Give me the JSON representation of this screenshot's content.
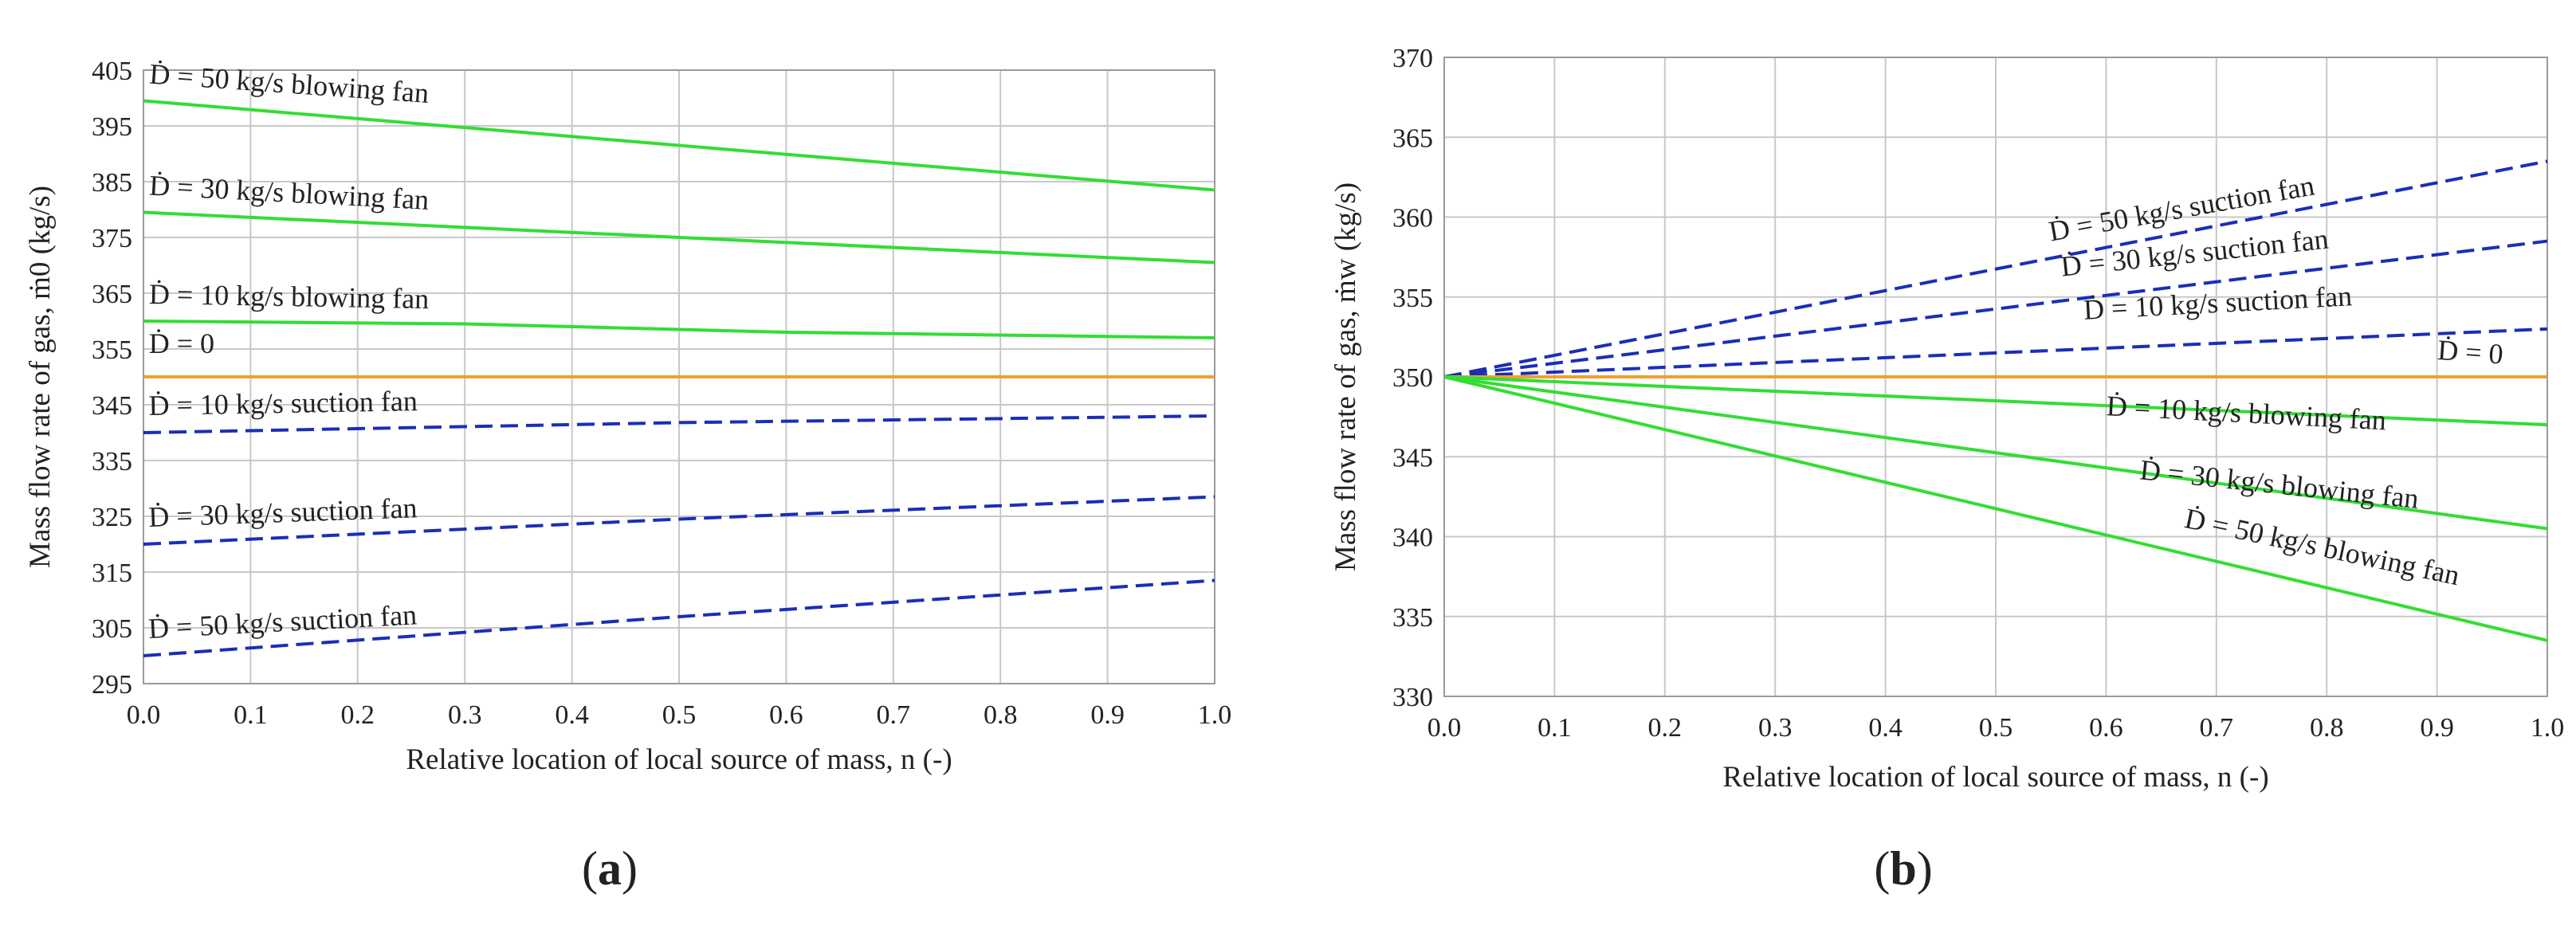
{
  "chart_data": [
    {
      "panel": "a",
      "type": "line",
      "panel_label": {
        "open": "(",
        "letter": "a",
        "close": ")"
      },
      "xlabel": "Relative location of local source of mass, n (-)",
      "ylabel": "Mass flow rate of gas, ṁ0 (kg/s)",
      "xlim": [
        0.0,
        1.0
      ],
      "ylim": [
        295,
        405
      ],
      "x_ticks": [
        "0.0",
        "0.1",
        "0.2",
        "0.3",
        "0.4",
        "0.5",
        "0.6",
        "0.7",
        "0.8",
        "0.9",
        "1.0"
      ],
      "y_ticks": [
        "295",
        "305",
        "315",
        "325",
        "335",
        "345",
        "355",
        "365",
        "375",
        "385",
        "395",
        "405"
      ],
      "grid": true,
      "series": [
        {
          "name": "Ḋ = 50 kg/s blowing fan",
          "style": "solid",
          "color": "#33dd33",
          "x": [
            0.0,
            0.5,
            1.0
          ],
          "y": [
            399.5,
            391.5,
            383.5
          ]
        },
        {
          "name": "Ḋ = 30 kg/s blowing fan",
          "style": "solid",
          "color": "#33dd33",
          "x": [
            0.0,
            0.5,
            1.0
          ],
          "y": [
            379.5,
            375.0,
            370.5
          ]
        },
        {
          "name": "Ḋ = 10 kg/s blowing fan",
          "style": "solid",
          "color": "#33dd33",
          "x": [
            0.0,
            0.3,
            0.6,
            1.0
          ],
          "y": [
            360.0,
            359.5,
            358.0,
            357.0
          ]
        },
        {
          "name": "Ḋ = 0",
          "style": "solid",
          "color": "#f0a030",
          "x": [
            0.0,
            1.0
          ],
          "y": [
            350.0,
            350.0
          ]
        },
        {
          "name": "Ḋ = 10 kg/s suction fan",
          "style": "dashed",
          "color": "#1a2eb8",
          "x": [
            0.0,
            0.5,
            1.0
          ],
          "y": [
            340.0,
            341.8,
            343.0
          ]
        },
        {
          "name": "Ḋ = 30 kg/s suction fan",
          "style": "dashed",
          "color": "#1a2eb8",
          "x": [
            0.0,
            0.5,
            1.0
          ],
          "y": [
            320.0,
            324.5,
            328.5
          ]
        },
        {
          "name": "Ḋ = 50 kg/s suction fan",
          "style": "dashed",
          "color": "#1a2eb8",
          "x": [
            0.0,
            0.5,
            1.0
          ],
          "y": [
            300.0,
            307.0,
            313.5
          ]
        }
      ]
    },
    {
      "panel": "b",
      "type": "line",
      "panel_label": {
        "open": "(",
        "letter": "b",
        "close": ")"
      },
      "xlabel": "Relative location of local source of mass, n (-)",
      "ylabel": "Mass flow rate of gas, ṁw (kg/s)",
      "xlim": [
        0.0,
        1.0
      ],
      "ylim": [
        330,
        370
      ],
      "x_ticks": [
        "0.0",
        "0.1",
        "0.2",
        "0.3",
        "0.4",
        "0.5",
        "0.6",
        "0.7",
        "0.8",
        "0.9",
        "1.0"
      ],
      "y_ticks": [
        "330",
        "335",
        "340",
        "345",
        "350",
        "355",
        "360",
        "365",
        "370"
      ],
      "grid": true,
      "series": [
        {
          "name": "Ḋ = 50 kg/s suction fan",
          "style": "dashed",
          "color": "#1a2eb8",
          "x": [
            0.0,
            1.0
          ],
          "y": [
            350.0,
            363.5
          ]
        },
        {
          "name": "Ḋ = 30 kg/s suction fan",
          "style": "dashed",
          "color": "#1a2eb8",
          "x": [
            0.0,
            1.0
          ],
          "y": [
            350.0,
            358.5
          ]
        },
        {
          "name": "Ḋ = 10 kg/s suction fan",
          "style": "dashed",
          "color": "#1a2eb8",
          "x": [
            0.0,
            1.0
          ],
          "y": [
            350.0,
            353.0
          ]
        },
        {
          "name": "Ḋ = 0",
          "style": "solid",
          "color": "#f0a030",
          "x": [
            0.0,
            1.0
          ],
          "y": [
            350.0,
            350.0
          ]
        },
        {
          "name": "Ḋ = 10 kg/s blowing fan",
          "style": "solid",
          "color": "#33dd33",
          "x": [
            0.0,
            1.0
          ],
          "y": [
            350.0,
            347.0
          ]
        },
        {
          "name": "Ḋ = 30 kg/s blowing fan",
          "style": "solid",
          "color": "#33dd33",
          "x": [
            0.0,
            1.0
          ],
          "y": [
            350.0,
            340.5
          ]
        },
        {
          "name": "Ḋ = 50 kg/s blowing fan",
          "style": "solid",
          "color": "#33dd33",
          "x": [
            0.0,
            1.0
          ],
          "y": [
            350.0,
            333.5
          ]
        }
      ]
    }
  ]
}
